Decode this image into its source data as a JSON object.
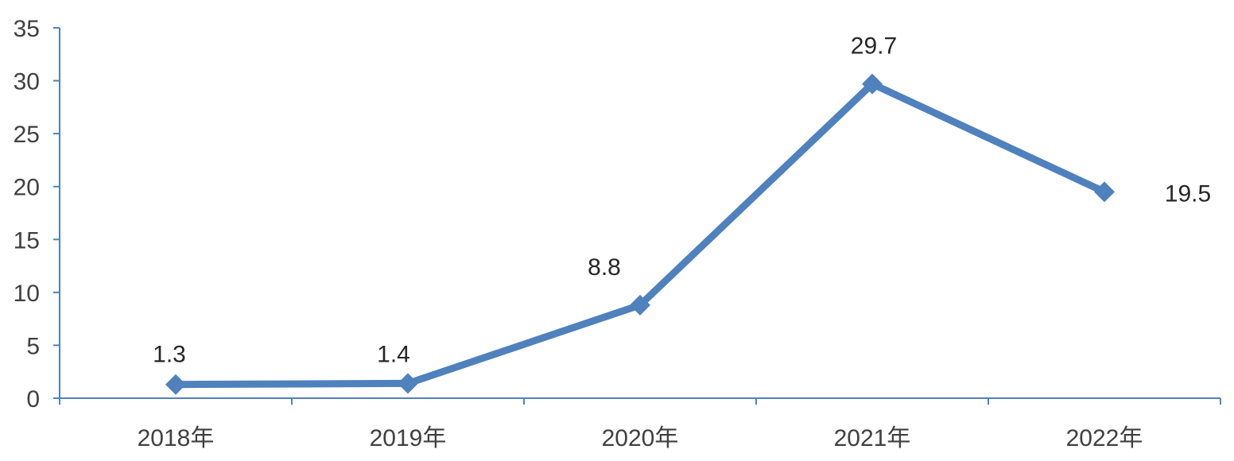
{
  "chart_data": {
    "type": "line",
    "categories": [
      "2018年",
      "2019年",
      "2020年",
      "2021年",
      "2022年"
    ],
    "series": [
      {
        "values": [
          1.3,
          1.4,
          8.8,
          29.7,
          19.5
        ],
        "color": "#4F81BD",
        "marker": "diamond",
        "data_labels": [
          "1.3",
          "1.4",
          "8.8",
          "29.7",
          "19.5"
        ]
      }
    ],
    "title": "",
    "xlabel": "",
    "ylabel": "",
    "ylim": [
      0,
      35
    ],
    "yticks": [
      0,
      5,
      10,
      15,
      20,
      25,
      30,
      35
    ],
    "ytick_labels": [
      "0",
      "5",
      "10",
      "15",
      "20",
      "25",
      "30",
      "35"
    ],
    "grid": false,
    "legend": "none",
    "axis_color": "#4F81BD"
  }
}
